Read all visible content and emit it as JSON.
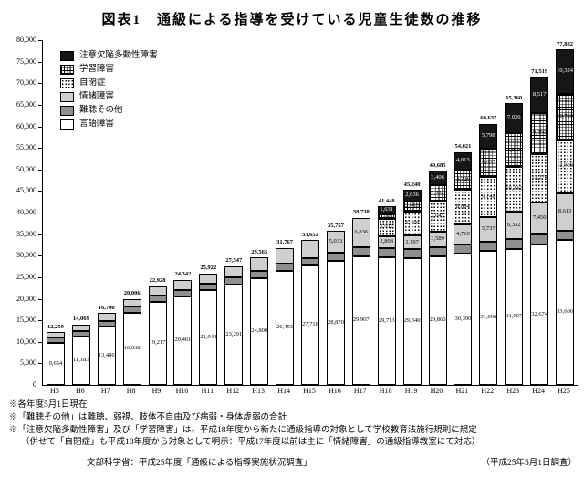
{
  "page": {
    "title": "図表1　通級による指導を受けている児童生徒数の推移"
  },
  "chart_data": {
    "type": "bar",
    "stacked": true,
    "title": "図表1　通級による指導を受けている児童生徒数の推移",
    "categories": [
      "H5",
      "H6",
      "H7",
      "H8",
      "H9",
      "H10",
      "H11",
      "H12",
      "H13",
      "H14",
      "H15",
      "H16",
      "H17",
      "H18",
      "H19",
      "H20",
      "H21",
      "H22",
      "H23",
      "H24",
      "H25"
    ],
    "series": [
      {
        "name": "言語障害",
        "pattern": "white",
        "values": [
          9654,
          11183,
          13486,
          16638,
          19217,
          20461,
          21944,
          23291,
          24800,
          26453,
          27718,
          28870,
          29907,
          29713,
          29340,
          29860,
          30390,
          31066,
          31607,
          32674,
          33606
        ]
      },
      {
        "name": "難聴その他",
        "pattern": "dgray",
        "values": [
          1268,
          1350,
          1420,
          1480,
          1530,
          1560,
          1590,
          1620,
          1650,
          1700,
          1750,
          1854,
          1995,
          1943,
          2113,
          2101,
          2118,
          2233,
          2240,
          2254,
          2262
        ]
      },
      {
        "name": "情緒障害",
        "pattern": "lgray",
        "values": [
          1337,
          1536,
          1794,
          1888,
          2181,
          2321,
          2388,
          2636,
          3115,
          3614,
          4184,
          5033,
          6836,
          2898,
          3197,
          3589,
          4710,
          5737,
          6332,
          7450,
          8613
        ]
      },
      {
        "name": "自閉症",
        "pattern": "dots",
        "values": [
          0,
          0,
          0,
          0,
          0,
          0,
          0,
          0,
          0,
          0,
          0,
          0,
          0,
          3912,
          5469,
          7047,
          8064,
          9148,
          10342,
          11274,
          12308
        ]
      },
      {
        "name": "学習障害",
        "pattern": "grid",
        "values": [
          0,
          0,
          0,
          0,
          0,
          0,
          0,
          0,
          0,
          0,
          0,
          0,
          0,
          1351,
          2485,
          3682,
          4726,
          6655,
          7813,
          9350,
          10769
        ]
      },
      {
        "name": "注意欠陥多動性障害",
        "pattern": "black",
        "values": [
          0,
          0,
          0,
          0,
          0,
          0,
          0,
          0,
          0,
          0,
          0,
          0,
          0,
          1631,
          2636,
          3406,
          4013,
          5798,
          7026,
          8517,
          10324
        ]
      }
    ],
    "totals": [
      12259,
      14069,
      16700,
      20006,
      22928,
      24342,
      25922,
      27547,
      29565,
      31767,
      33652,
      35757,
      38738,
      41448,
      45240,
      49685,
      54021,
      60637,
      65360,
      71519,
      77882
    ],
    "ylim": [
      0,
      80000
    ],
    "ytick_labels": [
      "0",
      "5,000",
      "10,000",
      "15,000",
      "20,000",
      "25,000",
      "30,000",
      "35,000",
      "40,000",
      "45,000",
      "50,000",
      "55,000",
      "60,000",
      "65,000",
      "70,000",
      "75,000",
      "80,000"
    ],
    "legend_position": "top-left",
    "grid": false
  },
  "notes": [
    "※各年度5月1日現在",
    "※「難聴その他」は難聴、弱視、肢体不自由及び病弱・身体虚弱の合計",
    "※「注意欠陥多動性障害」及び「学習障害」は、平成18年度から新たに通級指導の対象として学校教育法施行規則に規定",
    "（併せて「自閉症」も平成18年度から対象として明示：平成17年度以前は主に「情緒障害」の通級指導教室にて対応）"
  ],
  "source": {
    "left": "文部科学省：平成25年度「通級による指導実施状況調査」",
    "right": "（平成25年5月1日調査）"
  }
}
